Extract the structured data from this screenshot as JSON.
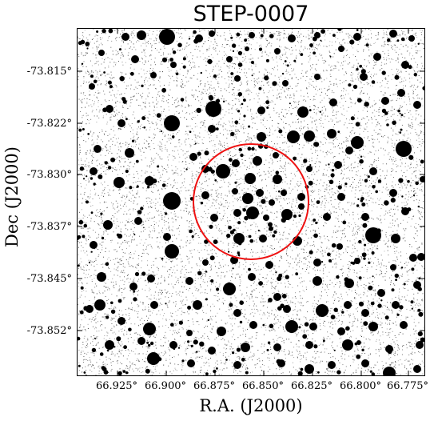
{
  "title": "STEP-0007",
  "axes": {
    "xlabel": "R.A. (J2000)",
    "ylabel": "Dec (J2000)",
    "xticks": [
      "66.925°",
      "66.900°",
      "66.875°",
      "66.850°",
      "66.825°",
      "66.800°",
      "66.775°"
    ],
    "yticks": [
      "-73.815°",
      "-73.822°",
      "-73.830°",
      "-73.837°",
      "-73.845°",
      "-73.852°"
    ]
  },
  "colors": {
    "circle": "#ee1111",
    "stars": "#000000",
    "background": "#ffffff"
  }
}
